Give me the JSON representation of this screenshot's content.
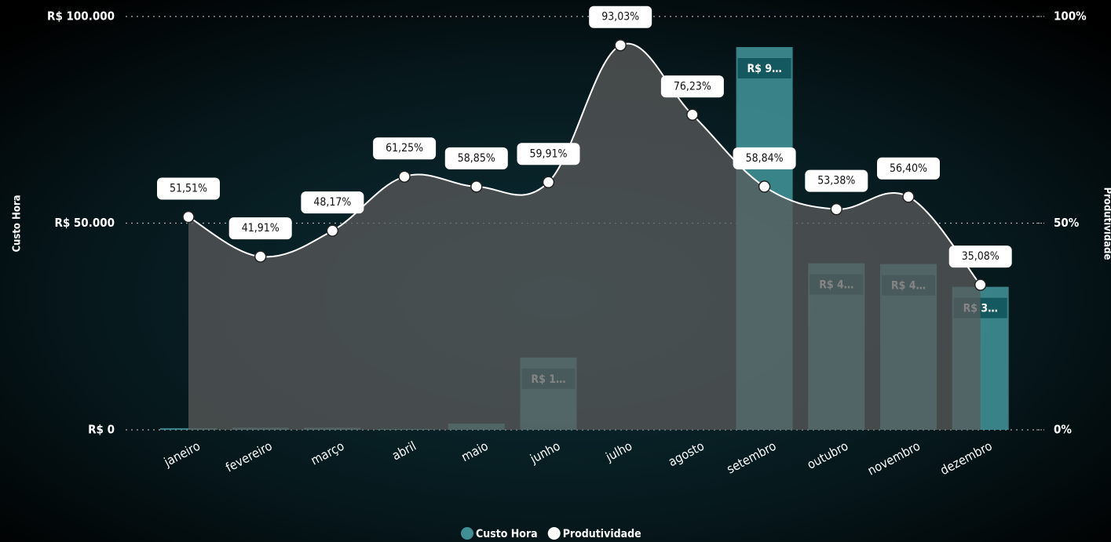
{
  "chart_data": {
    "type": "combo",
    "y_title": "Custo Hora",
    "y2_title": "Produtividade",
    "categories": [
      "janeiro",
      "fevereiro",
      "março",
      "abril",
      "maio",
      "junho",
      "julho",
      "agosto",
      "setembro",
      "outubro",
      "novembro",
      "dezembro"
    ],
    "series": [
      {
        "name": "Custo Hora",
        "type": "bar",
        "color": "#3f8f95",
        "values": [
          400,
          500,
          500,
          200,
          1500,
          17500,
          0,
          0,
          92600,
          40300,
          40100,
          34600
        ],
        "value_labels": [
          null,
          null,
          null,
          null,
          null,
          "R$ 1…",
          null,
          null,
          "R$ 9…",
          "R$ 4…",
          "R$ 4…",
          "R$ 3…"
        ]
      },
      {
        "name": "Produtividade",
        "type": "line",
        "axis": "y2",
        "color": "#ffffff",
        "area_color": "#5b5b5b",
        "values": [
          51.51,
          41.91,
          48.17,
          61.25,
          58.85,
          59.91,
          93.03,
          76.23,
          58.84,
          53.38,
          56.4,
          35.08
        ],
        "value_labels": [
          "51,51%",
          "41,91%",
          "48,17%",
          "61,25%",
          "58,85%",
          "59,91%",
          "93,03%",
          "76,23%",
          "58,84%",
          "53,38%",
          "56,40%",
          "35,08%"
        ]
      }
    ],
    "ylim": [
      0,
      100000
    ],
    "yticks": [
      {
        "value": 0,
        "label": "R$ 0"
      },
      {
        "value": 50000,
        "label": "R$ 50.000"
      },
      {
        "value": 100000,
        "label": "R$ 100.000"
      }
    ],
    "y2lim": [
      0,
      100
    ],
    "y2ticks": [
      {
        "value": 0,
        "label": "0%"
      },
      {
        "value": 50,
        "label": "50%"
      },
      {
        "value": 100,
        "label": "100%"
      }
    ],
    "grid": true,
    "legend": "bottom"
  }
}
